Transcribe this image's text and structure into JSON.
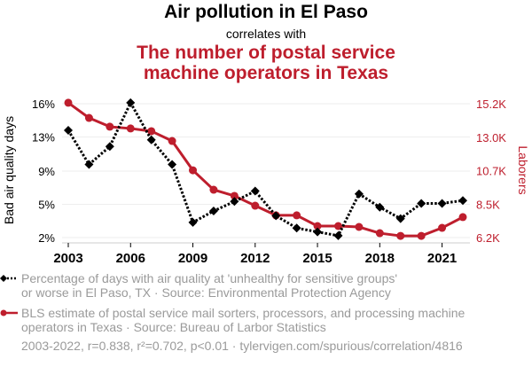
{
  "header": {
    "title": "Air pollution in El Paso",
    "subtitle": "correlates with",
    "title2_line1": "The number of postal service",
    "title2_line2": "machine operators in Texas"
  },
  "legend": {
    "series1_line1": "Percentage of days with air quality at 'unhealthy for sensitive groups'",
    "series1_line2": "or worse in El Paso, TX · Source: Environmental Protection Agency",
    "series2_line1": "BLS estimate of postal service mail sorters, processors, and processing machine",
    "series2_line2": "operators in Texas · Source: Bureau of Larbor Statistics"
  },
  "footer": "2003-2022, r=0.838, r²=0.702, p<0.01 · tylervigen.com/spurious/correlation/4816",
  "colors": {
    "series1": "#000000",
    "series2": "#be1e2d",
    "grid": "#eeeeee",
    "axis_text": "#000000",
    "right_axis_text": "#be1e2d"
  },
  "chart_data": {
    "type": "line",
    "title": "Air pollution in El Paso correlates with The number of postal service machine operators in Texas",
    "x": [
      2003,
      2004,
      2005,
      2006,
      2007,
      2008,
      2009,
      2010,
      2011,
      2012,
      2013,
      2014,
      2015,
      2016,
      2017,
      2018,
      2019,
      2020,
      2021,
      2022
    ],
    "xlabel": "",
    "xticks": [
      "2003",
      "2006",
      "2009",
      "2012",
      "2015",
      "2018",
      "2021"
    ],
    "xtick_values": [
      2003,
      2006,
      2009,
      2012,
      2015,
      2018,
      2021
    ],
    "xlim": [
      2003,
      2022
    ],
    "series": [
      {
        "name": "Percentage of days with air quality at 'unhealthy for sensitive groups' or worse in El Paso, TX",
        "axis": "left",
        "style": "dotted",
        "marker": "diamond",
        "values": [
          13.2,
          9.6,
          11.5,
          16.1,
          12.2,
          9.6,
          3.5,
          4.7,
          5.7,
          6.8,
          4.2,
          2.9,
          2.5,
          2.1,
          6.5,
          5.1,
          3.9,
          5.5,
          5.5,
          5.8
        ]
      },
      {
        "name": "BLS estimate of postal service mail sorters, processors, and processing machine operators in Texas",
        "axis": "right",
        "style": "solid",
        "marker": "circle",
        "values": [
          15290,
          14270,
          13680,
          13560,
          13380,
          12720,
          10750,
          9440,
          9030,
          8370,
          7720,
          7720,
          7000,
          7000,
          6940,
          6520,
          6340,
          6340,
          6880,
          7600
        ]
      }
    ],
    "left_axis": {
      "label": "Bad air quality days",
      "ticks": [
        "2%",
        "5%",
        "9%",
        "13%",
        "16%"
      ],
      "tick_values": [
        1.9,
        5.4,
        8.9,
        12.5,
        16.0
      ],
      "ylim": [
        1.9,
        16.0
      ]
    },
    "right_axis": {
      "label": "Laborers",
      "ticks": [
        "6.2K",
        "8.5K",
        "10.7K",
        "13.0K",
        "15.2K"
      ],
      "tick_values": [
        6225,
        8475,
        10725,
        12975,
        15225
      ],
      "ylim": [
        6225,
        15225
      ]
    },
    "grid": true,
    "legend_position": "bottom"
  }
}
